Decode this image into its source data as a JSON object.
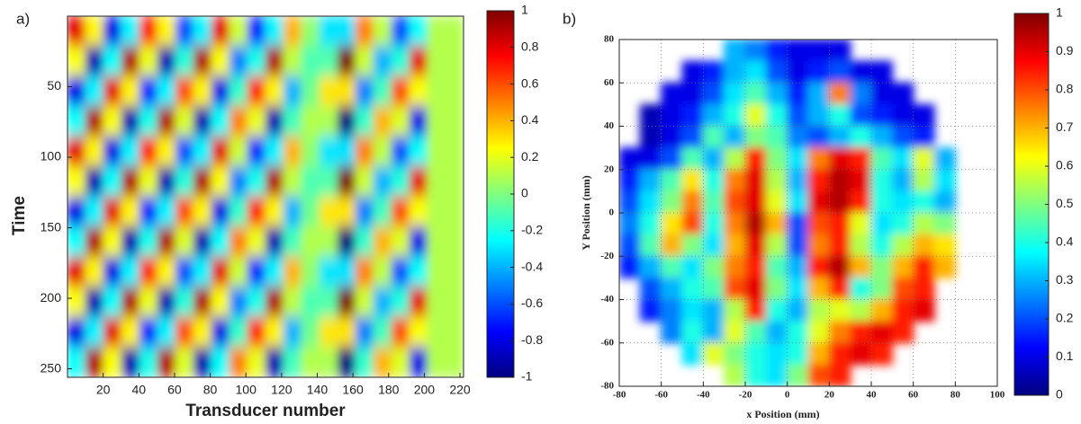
{
  "chart_data": [
    {
      "type": "heatmap",
      "panel_label": "a)",
      "xlabel": "Transducer number",
      "ylabel": "Time",
      "xlim": [
        0,
        222
      ],
      "ylim": [
        0,
        256
      ],
      "y_reversed": true,
      "grid": false,
      "colormap": "jet",
      "xticks": [
        20,
        40,
        60,
        80,
        100,
        120,
        140,
        160,
        180,
        200,
        220
      ],
      "yticks": [
        50,
        100,
        150,
        200,
        250
      ],
      "clim": [
        -1,
        1
      ],
      "cticks": [
        -1,
        -0.8,
        -0.6,
        -0.4,
        -0.2,
        0,
        0.2,
        0.4,
        0.6,
        0.8,
        1
      ],
      "z": [
        [
          0.8,
          0.27,
          -0.8,
          -0.27,
          0.7,
          0.27,
          -0.6,
          -0.27,
          0.8,
          0.15,
          -0.7,
          -0.27,
          0.4,
          0.03,
          -0.3,
          -0.3,
          0.5,
          0.12,
          -0.6,
          -0.24,
          0.1,
          0.1
        ],
        [
          0.24,
          -0.9,
          -0.24,
          0.9,
          0.21,
          -0.9,
          -0.18,
          0.9,
          0.24,
          -0.5,
          -0.21,
          0.9,
          0.12,
          -0.1,
          -0.09,
          1,
          0.15,
          -0.4,
          -0.18,
          0.8,
          0.1,
          0.1
        ],
        [
          -0.8,
          -0.27,
          0.8,
          0.27,
          -0.7,
          -0.27,
          0.6,
          0.27,
          -0.8,
          -0.15,
          0.7,
          0.27,
          -0.4,
          -0.03,
          0.3,
          0.3,
          -0.5,
          -0.12,
          0.6,
          0.24,
          0.1,
          0.1
        ],
        [
          -0.24,
          0.9,
          0.24,
          -0.9,
          -0.21,
          0.9,
          0.18,
          -0.9,
          -0.24,
          0.5,
          0.21,
          -0.9,
          -0.12,
          0.1,
          0.09,
          -1,
          -0.15,
          0.4,
          0.18,
          -0.8,
          0.1,
          0.1
        ],
        [
          0.8,
          0.27,
          -0.8,
          -0.27,
          0.7,
          0.27,
          -0.6,
          -0.27,
          0.8,
          0.15,
          -0.7,
          -0.27,
          0.4,
          0.03,
          -0.3,
          -0.3,
          0.5,
          0.12,
          -0.6,
          -0.24,
          0.1,
          0.1
        ],
        [
          0.24,
          -0.9,
          -0.24,
          0.9,
          0.21,
          -0.9,
          -0.18,
          0.9,
          0.24,
          -0.5,
          -0.21,
          0.9,
          0.12,
          -0.1,
          -0.09,
          1,
          0.15,
          -0.4,
          -0.18,
          0.8,
          0.1,
          0.1
        ],
        [
          -0.8,
          -0.27,
          0.8,
          0.27,
          -0.7,
          -0.27,
          0.6,
          0.27,
          -0.8,
          -0.15,
          0.7,
          0.27,
          -0.4,
          -0.03,
          0.3,
          0.3,
          -0.5,
          -0.12,
          0.6,
          0.24,
          0.1,
          0.1
        ],
        [
          -0.24,
          0.9,
          0.24,
          -0.9,
          -0.21,
          0.9,
          0.18,
          -0.9,
          -0.24,
          0.5,
          0.21,
          -0.9,
          -0.12,
          0.1,
          0.09,
          -1,
          -0.15,
          0.4,
          0.18,
          -0.8,
          0.1,
          0.1
        ],
        [
          0.8,
          0.27,
          -0.8,
          -0.27,
          0.7,
          0.27,
          -0.6,
          -0.27,
          0.8,
          0.15,
          -0.7,
          -0.27,
          0.4,
          0.03,
          -0.3,
          -0.3,
          0.5,
          0.12,
          -0.6,
          -0.24,
          0.1,
          0.1
        ],
        [
          0.24,
          -0.9,
          -0.24,
          0.9,
          0.21,
          -0.9,
          -0.18,
          0.9,
          0.24,
          -0.5,
          -0.21,
          0.9,
          0.12,
          -0.1,
          -0.09,
          1,
          0.15,
          -0.4,
          -0.18,
          0.8,
          0.1,
          0.1
        ],
        [
          -0.8,
          -0.27,
          0.8,
          0.27,
          -0.7,
          -0.27,
          0.6,
          0.27,
          -0.8,
          -0.15,
          0.7,
          0.27,
          -0.4,
          -0.03,
          0.3,
          0.3,
          -0.5,
          -0.12,
          0.6,
          0.24,
          0.1,
          0.1
        ],
        [
          -0.24,
          0.9,
          0.24,
          -0.9,
          -0.21,
          0.9,
          0.18,
          -0.9,
          -0.24,
          0.5,
          0.21,
          -0.9,
          -0.12,
          0.1,
          0.09,
          -1,
          -0.15,
          0.4,
          0.18,
          -0.8,
          0.1,
          0.1
        ]
      ]
    },
    {
      "type": "heatmap",
      "panel_label": "b)",
      "xlabel": "x Position (mm)",
      "ylabel": "Y Position (mm)",
      "xlim": [
        -80,
        100
      ],
      "ylim": [
        -80,
        80
      ],
      "y_reversed": false,
      "grid": true,
      "colormap": "jet",
      "xticks": [
        -80,
        -60,
        -40,
        -20,
        0,
        20,
        40,
        60,
        80,
        100
      ],
      "yticks": [
        -80,
        -60,
        -40,
        -20,
        0,
        20,
        40,
        60,
        80
      ],
      "clim": [
        0,
        1
      ],
      "cticks": [
        0,
        0.1,
        0.2,
        0.3,
        0.4,
        0.5,
        0.6,
        0.7,
        0.8,
        0.9,
        1
      ],
      "z": [
        [
          null,
          null,
          null,
          null,
          null,
          0.3,
          0.25,
          0.15,
          0.1,
          0.1,
          0.1,
          null,
          null,
          null,
          null,
          null,
          null,
          null
        ],
        [
          null,
          null,
          null,
          0.1,
          0.15,
          0.3,
          0.35,
          0.2,
          0.1,
          0.15,
          0.2,
          0.1,
          0.1,
          null,
          null,
          null,
          null,
          null
        ],
        [
          null,
          null,
          0.1,
          0.1,
          0.2,
          0.35,
          0.45,
          0.3,
          0.15,
          0.3,
          0.75,
          0.25,
          0.1,
          0.1,
          null,
          null,
          null,
          null
        ],
        [
          null,
          0.05,
          0.1,
          0.15,
          0.3,
          0.4,
          0.6,
          0.4,
          0.2,
          0.3,
          0.4,
          0.2,
          0.15,
          0.1,
          0.1,
          null,
          null,
          null
        ],
        [
          null,
          0.05,
          0.1,
          0.2,
          0.45,
          0.3,
          0.5,
          0.45,
          0.25,
          0.2,
          0.3,
          0.4,
          0.3,
          0.2,
          0.15,
          null,
          null,
          null
        ],
        [
          0.1,
          0.1,
          0.2,
          0.45,
          0.3,
          0.55,
          0.85,
          0.5,
          0.35,
          0.75,
          0.9,
          0.85,
          0.45,
          0.35,
          0.6,
          0.3,
          null,
          null
        ],
        [
          0.15,
          0.3,
          0.45,
          0.65,
          0.4,
          0.75,
          0.9,
          0.55,
          0.3,
          0.85,
          0.95,
          0.9,
          0.4,
          0.3,
          0.55,
          0.35,
          null,
          null
        ],
        [
          0.2,
          0.35,
          0.5,
          0.75,
          0.45,
          0.8,
          0.9,
          0.6,
          0.35,
          0.9,
          0.95,
          0.85,
          0.4,
          0.35,
          0.4,
          0.3,
          null,
          null
        ],
        [
          0.25,
          0.4,
          0.65,
          0.8,
          0.4,
          0.75,
          0.95,
          0.7,
          0.2,
          0.8,
          0.85,
          0.6,
          0.35,
          0.4,
          0.55,
          0.5,
          null,
          null
        ],
        [
          0.2,
          0.45,
          0.7,
          0.5,
          0.35,
          0.7,
          0.9,
          0.55,
          0.2,
          0.75,
          0.85,
          0.55,
          0.4,
          0.55,
          0.7,
          0.65,
          null,
          null
        ],
        [
          0.15,
          0.3,
          0.45,
          0.35,
          0.5,
          0.75,
          0.85,
          0.45,
          0.3,
          0.85,
          0.95,
          0.7,
          0.5,
          0.7,
          0.85,
          0.7,
          null,
          null
        ],
        [
          null,
          0.2,
          0.3,
          0.4,
          0.45,
          0.8,
          0.9,
          0.5,
          0.35,
          0.7,
          0.85,
          0.4,
          0.5,
          0.8,
          0.85,
          null,
          null,
          null
        ],
        [
          null,
          0.15,
          0.25,
          0.35,
          0.3,
          0.55,
          0.85,
          0.4,
          0.3,
          0.55,
          0.6,
          0.55,
          0.7,
          0.85,
          0.9,
          null,
          null,
          null
        ],
        [
          null,
          null,
          0.25,
          0.4,
          0.3,
          0.6,
          0.45,
          0.3,
          0.4,
          0.6,
          0.75,
          0.85,
          0.9,
          0.85,
          null,
          null,
          null,
          null
        ],
        [
          null,
          null,
          null,
          0.35,
          0.6,
          0.5,
          0.4,
          0.35,
          0.4,
          0.7,
          0.85,
          0.9,
          0.85,
          null,
          null,
          null,
          null,
          null
        ],
        [
          null,
          null,
          null,
          null,
          null,
          0.55,
          0.4,
          0.35,
          0.5,
          0.8,
          0.85,
          null,
          null,
          null,
          null,
          null,
          null,
          null
        ]
      ]
    }
  ]
}
